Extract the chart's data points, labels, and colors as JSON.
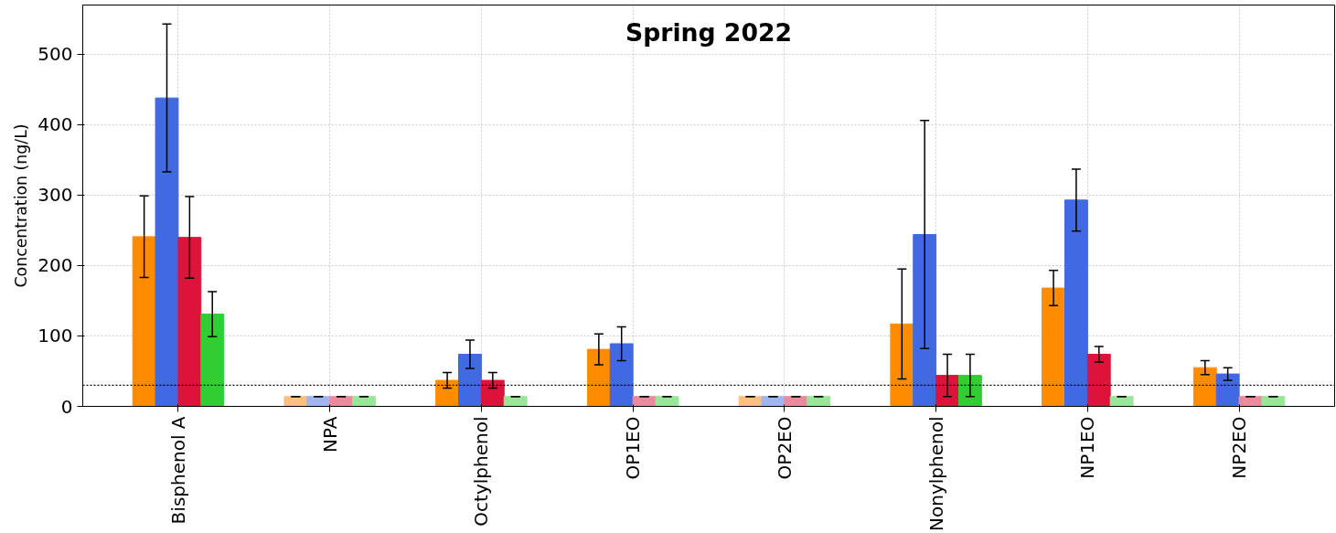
{
  "chart_data": {
    "type": "bar",
    "title": "Spring 2022",
    "ylabel": "Concentration (ng/L)",
    "categories": [
      "Bisphenol A",
      "NPA",
      "Octylphenol",
      "OP1EO",
      "OP2EO",
      "Nonylphenol",
      "NP1EO",
      "NP2EO"
    ],
    "series": [
      {
        "colors": [
          "#ff8c00",
          "#ffc07f",
          "#ff8c00",
          "#ff8c00",
          "#ffc07f",
          "#ff8c00",
          "#ff8c00",
          "#ff8c00"
        ],
        "values": [
          241,
          14,
          37,
          81,
          14,
          117,
          168,
          55
        ],
        "errors": [
          58,
          0,
          11,
          22,
          0,
          78,
          25,
          10
        ]
      },
      {
        "colors": [
          "#4169e1",
          "#a0b4f0",
          "#4169e1",
          "#4169e1",
          "#a0b4f0",
          "#4169e1",
          "#4169e1",
          "#4169e1"
        ],
        "values": [
          438,
          14,
          74,
          89,
          14,
          244,
          293,
          46
        ],
        "errors": [
          105,
          0,
          20,
          24,
          0,
          162,
          44,
          9
        ]
      },
      {
        "colors": [
          "#dc143c",
          "#ec8a9d",
          "#dc143c",
          "#ec8a9d",
          "#ec8a9d",
          "#dc143c",
          "#dc143c",
          "#ec8a9d"
        ],
        "values": [
          240,
          14,
          37,
          14,
          14,
          44,
          74,
          14
        ],
        "errors": [
          58,
          0,
          11,
          0,
          0,
          30,
          11,
          0
        ]
      },
      {
        "colors": [
          "#32cd32",
          "#98e698",
          "#98e698",
          "#98e698",
          "#98e698",
          "#32cd32",
          "#98e698",
          "#98e698"
        ],
        "values": [
          131,
          14,
          14,
          14,
          14,
          44,
          14,
          14
        ],
        "errors": [
          32,
          0,
          0,
          0,
          0,
          30,
          0,
          0
        ]
      }
    ],
    "ylim": [
      0,
      570
    ],
    "yticks": [
      0,
      100,
      200,
      300,
      400,
      500
    ],
    "grid": true,
    "ref_lines": [
      {
        "axis": "y",
        "value": 30,
        "color": "#000000",
        "line_style": "dotted"
      }
    ]
  }
}
